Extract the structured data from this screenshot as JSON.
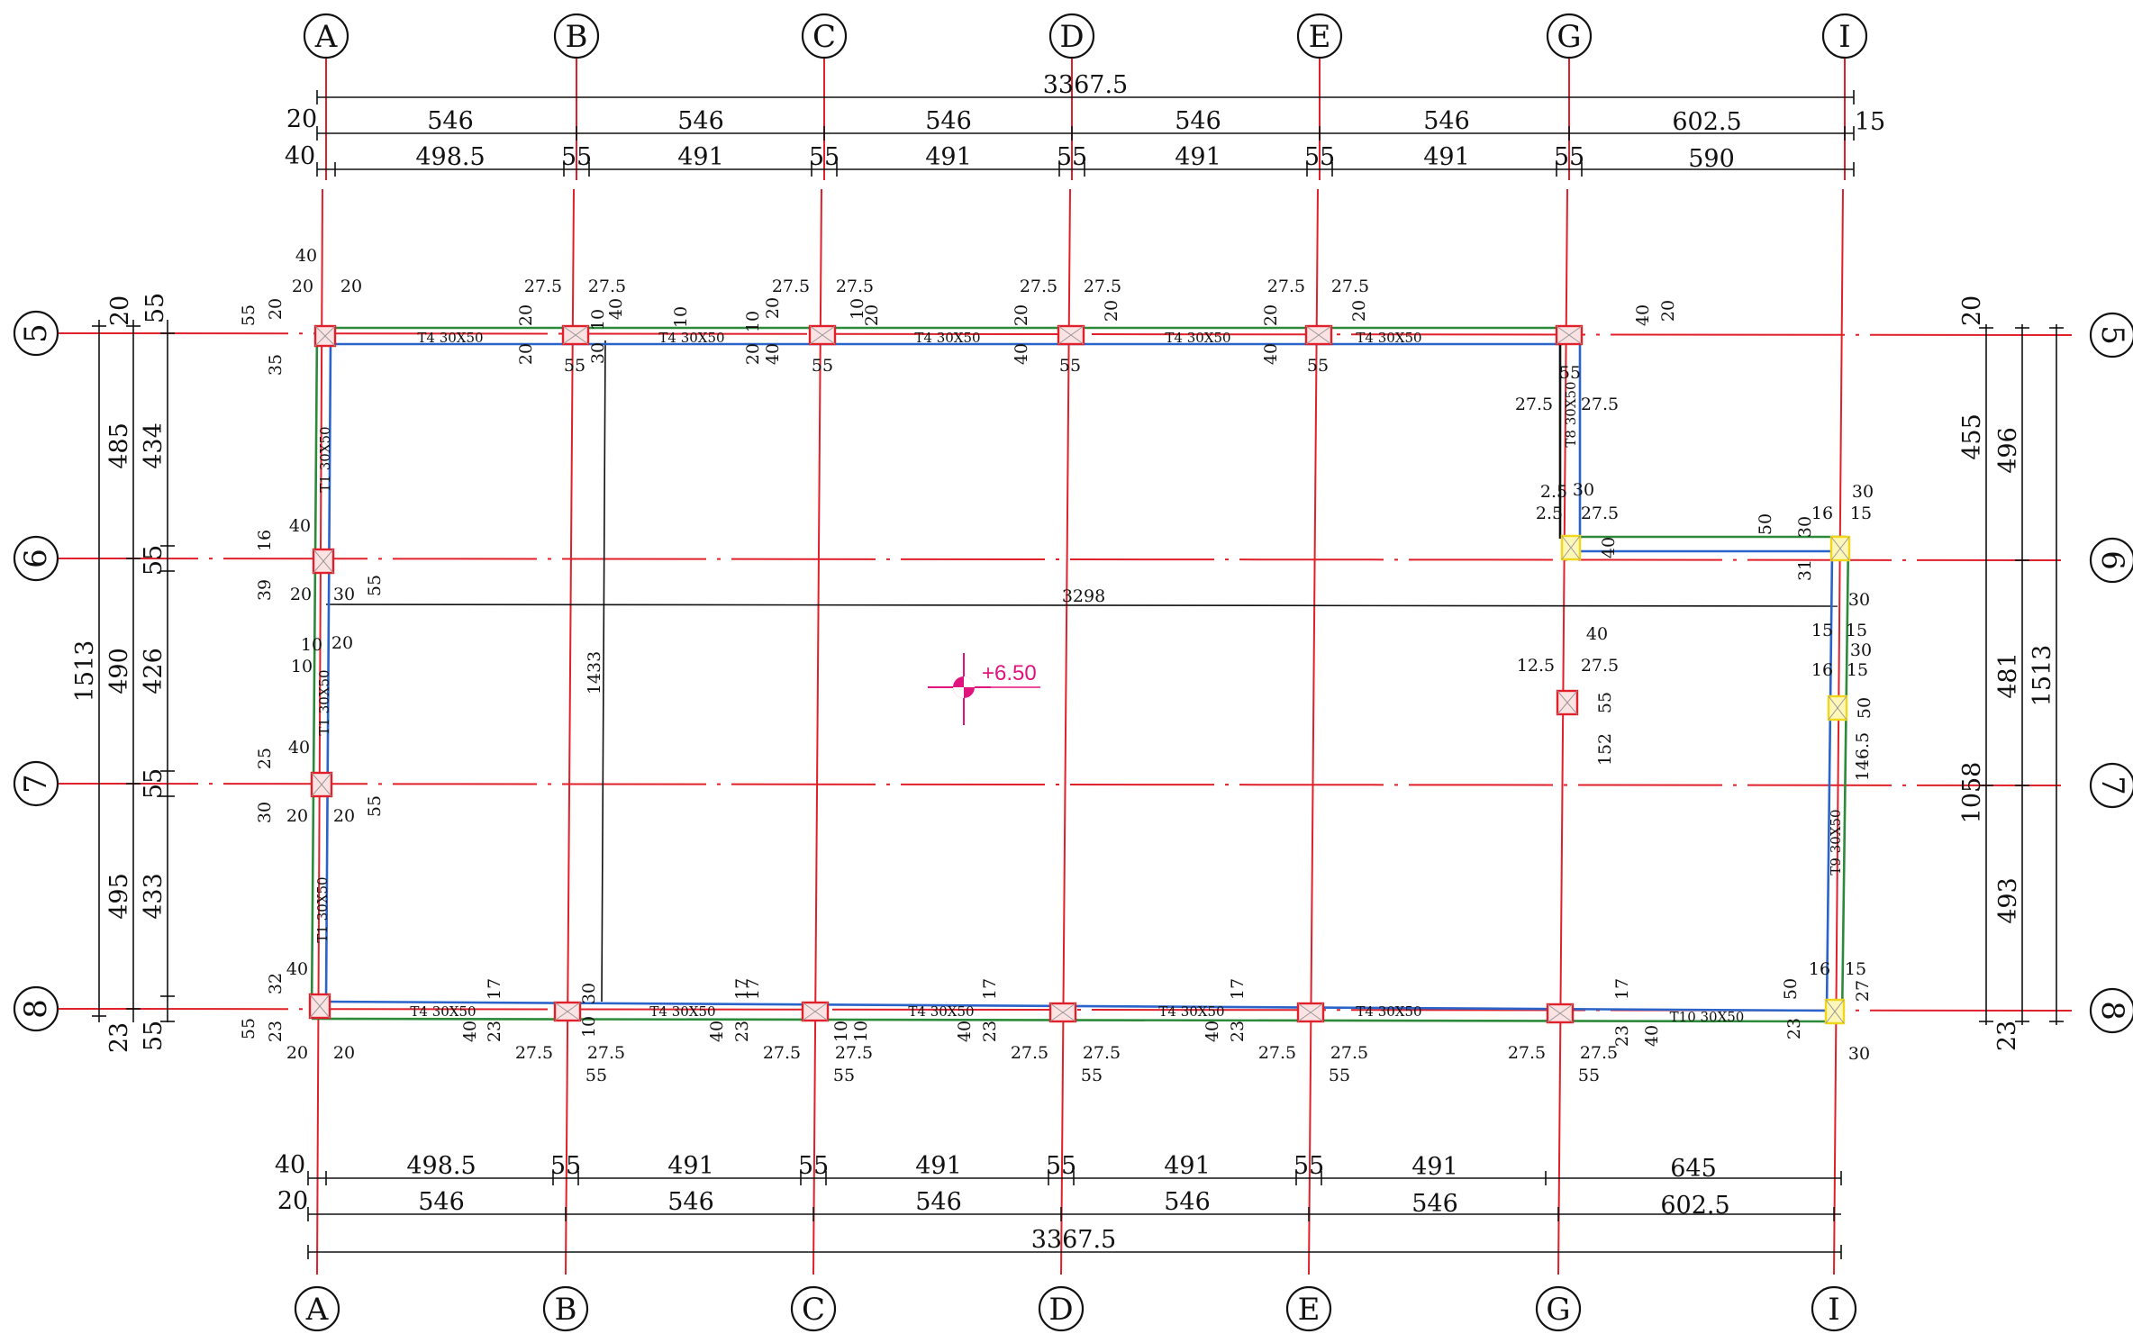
{
  "grid_columns": [
    "A",
    "B",
    "C",
    "D",
    "E",
    "G",
    "I"
  ],
  "grid_rows": [
    "5",
    "6",
    "7",
    "8"
  ],
  "top_dimensions": {
    "overall": "3367.5",
    "row1_left": "20",
    "row1": [
      "546",
      "546",
      "546",
      "546",
      "546",
      "602.5"
    ],
    "row1_right": "15",
    "row2_left": "40",
    "row2": [
      "498.5",
      "55",
      "491",
      "55",
      "491",
      "55",
      "491",
      "55",
      "491",
      "55",
      "590"
    ]
  },
  "bottom_dimensions": {
    "row1_left": "40",
    "row1": [
      "498.5",
      "55",
      "491",
      "55",
      "491",
      "55",
      "491",
      "55",
      "491",
      "645"
    ],
    "row2_left": "20",
    "row2": [
      "546",
      "546",
      "546",
      "546",
      "546",
      "602.5"
    ],
    "overall": "3367.5"
  },
  "left_dimensions": {
    "overall": "1513",
    "mid": [
      "485",
      "490",
      "495"
    ],
    "mid_end": "23",
    "mid_top": "20",
    "inner": [
      "434",
      "55",
      "426",
      "55",
      "433"
    ],
    "inner_top": "55",
    "inner_end": "55"
  },
  "right_dimensions": {
    "outer_left": [
      "455",
      "1058"
    ],
    "outer_left_end": "23",
    "outer_left_top": "20",
    "mid": [
      "496",
      "481",
      "493"
    ],
    "overall": "1513"
  },
  "beams": {
    "top": [
      "T4 30X50",
      "T4 30X50",
      "T4 30X50",
      "T4 30X50",
      "T4 30X50"
    ],
    "bottom": [
      "T4 30X50",
      "T4 30X50",
      "T4 30X50",
      "T4 30X50",
      "T4 30X50",
      "T10 30X50"
    ],
    "left": [
      "T1 30X50",
      "T1 30X50",
      "T1 30X50"
    ],
    "g_stub": "T8 30X50",
    "right": "T9 30X50"
  },
  "interior": {
    "span_3298": "3298",
    "span_1433": "1433",
    "elevation": "+6.50"
  },
  "small_dims": {
    "top_col": [
      "27.5",
      "27.5",
      "55"
    ],
    "bottom_col": [
      "27.5",
      "27.5",
      "55"
    ],
    "a5": [
      "40",
      "20",
      "20",
      "55",
      "20",
      "35"
    ],
    "a8": [
      "40",
      "32",
      "55",
      "23",
      "20",
      "20"
    ],
    "a6": [
      "40",
      "16",
      "39",
      "20",
      "30",
      "55"
    ],
    "a7": [
      "10",
      "20",
      "10",
      "40",
      "25",
      "30",
      "20",
      "20",
      "55"
    ],
    "top_misc": [
      "20",
      "20",
      "10",
      "40",
      "30",
      "10",
      "10",
      "20",
      "20",
      "40",
      "10",
      "20",
      "20",
      "40",
      "20",
      "20",
      "40",
      "20",
      "40",
      "20"
    ],
    "bottom_misc": [
      "40",
      "23",
      "17",
      "30",
      "10",
      "40",
      "23",
      "17",
      "17",
      "10",
      "10",
      "40",
      "23",
      "17",
      "40",
      "23",
      "17",
      "17",
      "23",
      "40"
    ],
    "g_col": [
      "55",
      "27.5",
      "27.5",
      "2.5",
      "30",
      "2.5",
      "27.5",
      "40",
      "12.5",
      "27.5",
      "40",
      "55",
      "152"
    ],
    "i_col": [
      "30",
      "16",
      "15",
      "50",
      "30",
      "31",
      "30",
      "15",
      "15",
      "30",
      "16",
      "15",
      "146.5",
      "50",
      "16",
      "15",
      "27",
      "50",
      "23",
      "30"
    ]
  },
  "colors": {
    "axis": "#e0202a",
    "beam_blue": "#2a63c9",
    "beam_green": "#2d8a3a",
    "column": "#e0202a",
    "column_yellow": "#f2d619",
    "elevation": "#e0147c"
  }
}
